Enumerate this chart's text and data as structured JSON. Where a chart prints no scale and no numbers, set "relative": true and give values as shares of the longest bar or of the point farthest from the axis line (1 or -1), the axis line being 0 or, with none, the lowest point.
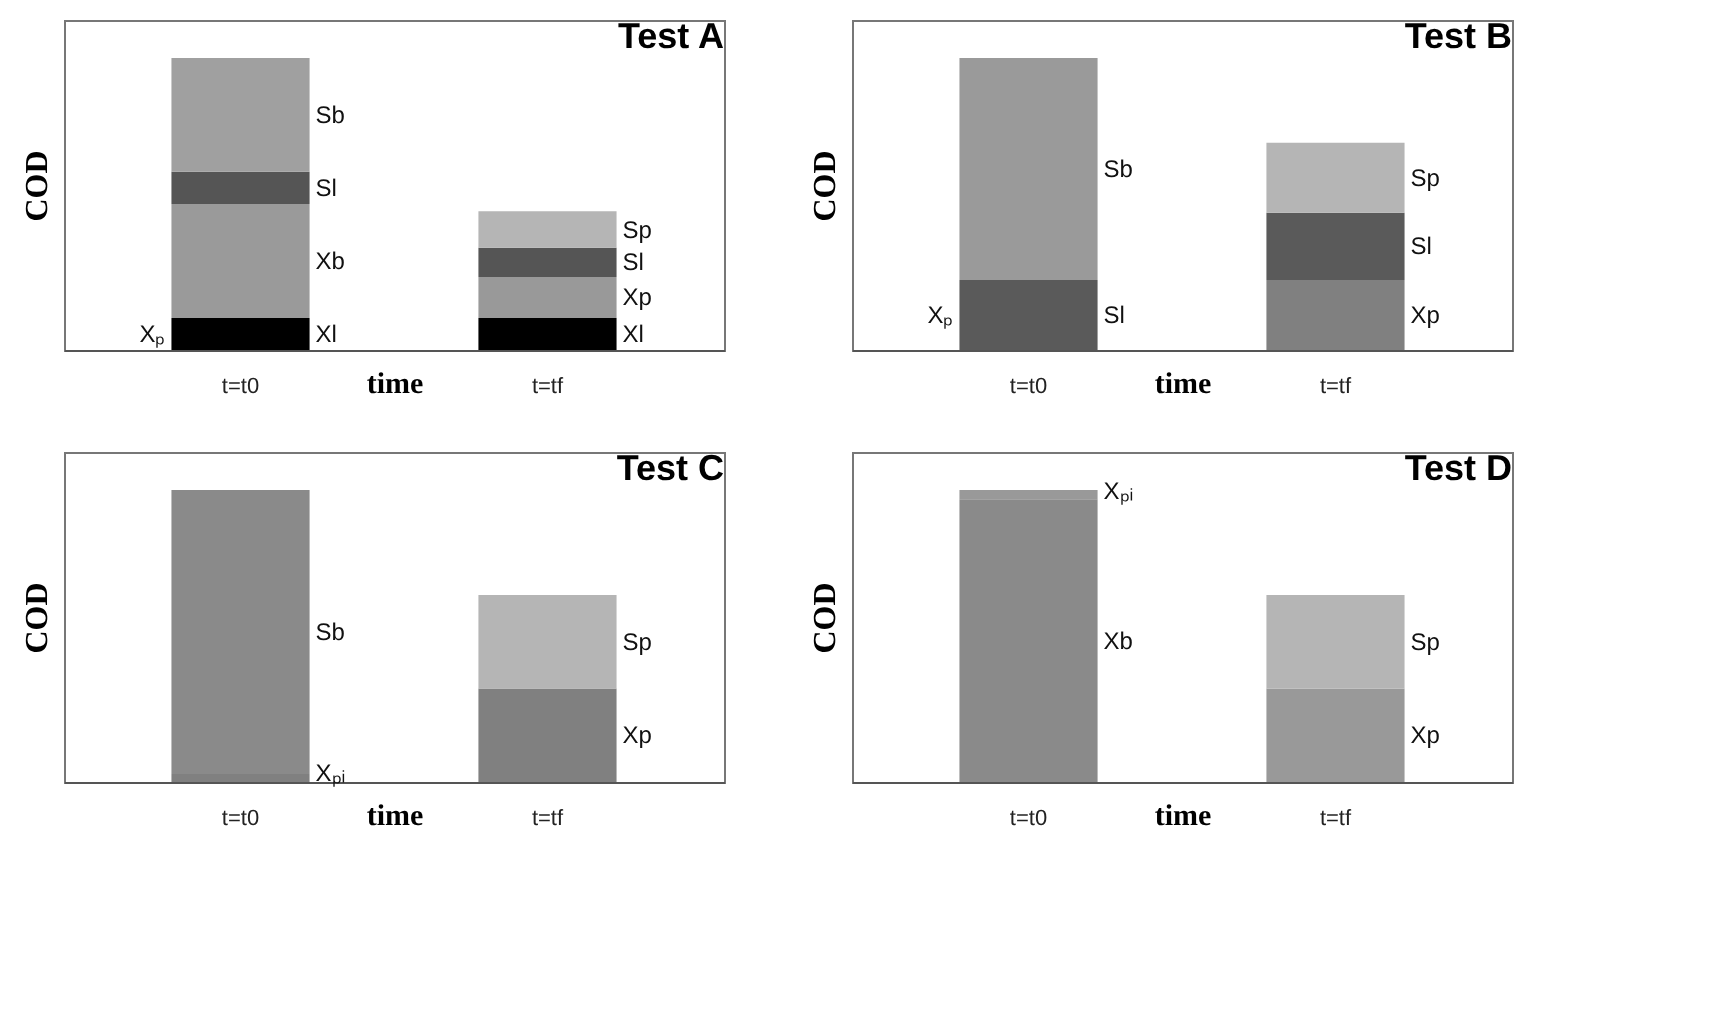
{
  "chart_data": [
    {
      "type": "bar",
      "title": "Test A",
      "xlabel": "time",
      "ylabel": "COD",
      "categories": [
        "t=t0",
        "t=tf"
      ],
      "stacked": true,
      "relative": true,
      "series": [
        {
          "name": "Xl",
          "color": "#000000",
          "values": [
            0.11,
            0.11
          ]
        },
        {
          "name": "Xb",
          "color": "#9a9a9a",
          "values": [
            0.39,
            null
          ]
        },
        {
          "name": "Xp",
          "color": "#999999",
          "values": [
            null,
            0.14
          ]
        },
        {
          "name": "Sl",
          "color": "#555555",
          "values": [
            0.11,
            0.1
          ]
        },
        {
          "name": "Sb",
          "color": "#a0a0a0",
          "values": [
            0.39,
            null
          ]
        },
        {
          "name": "Sp",
          "color": "#b5b5b5",
          "values": [
            null,
            0.125
          ]
        }
      ],
      "annotations": [
        "Xₚ"
      ]
    },
    {
      "type": "bar",
      "title": "Test B",
      "xlabel": "time",
      "ylabel": "COD",
      "categories": [
        "t=t0",
        "t=tf"
      ],
      "stacked": true,
      "relative": true,
      "series": [
        {
          "name": "Xp",
          "color": "#808080",
          "values": [
            null,
            0.24
          ]
        },
        {
          "name": "Sl",
          "color": "#5a5a5a",
          "values": [
            0.24,
            0.23
          ]
        },
        {
          "name": "Sb",
          "color": "#9a9a9a",
          "values": [
            0.76,
            null
          ]
        },
        {
          "name": "Sp",
          "color": "#b5b5b5",
          "values": [
            null,
            0.24
          ]
        }
      ],
      "annotations": [
        "Xₚ"
      ]
    },
    {
      "type": "bar",
      "title": "Test C",
      "xlabel": "time",
      "ylabel": "COD",
      "categories": [
        "t=t0",
        "t=tf"
      ],
      "stacked": true,
      "relative": true,
      "series": [
        {
          "name": "Xₚᵢ",
          "color": "#808080",
          "values": [
            0.027,
            null
          ]
        },
        {
          "name": "Xp",
          "color": "#808080",
          "values": [
            null,
            0.32
          ]
        },
        {
          "name": "Sb",
          "color": "#8a8a8a",
          "values": [
            0.973,
            null
          ]
        },
        {
          "name": "Sp",
          "color": "#b5b5b5",
          "values": [
            null,
            0.32
          ]
        }
      ]
    },
    {
      "type": "bar",
      "title": "Test D",
      "xlabel": "time",
      "ylabel": "COD",
      "categories": [
        "t=t0",
        "t=tf"
      ],
      "stacked": true,
      "relative": true,
      "series": [
        {
          "name": "Xb",
          "color": "#8a8a8a",
          "values": [
            0.968,
            null
          ]
        },
        {
          "name": "Xp",
          "color": "#999999",
          "values": [
            null,
            0.32
          ]
        },
        {
          "name": "Xₚᵢ",
          "color": "#999999",
          "values": [
            0.032,
            null
          ]
        },
        {
          "name": "Sp",
          "color": "#b5b5b5",
          "values": [
            null,
            0.32
          ]
        }
      ]
    }
  ]
}
